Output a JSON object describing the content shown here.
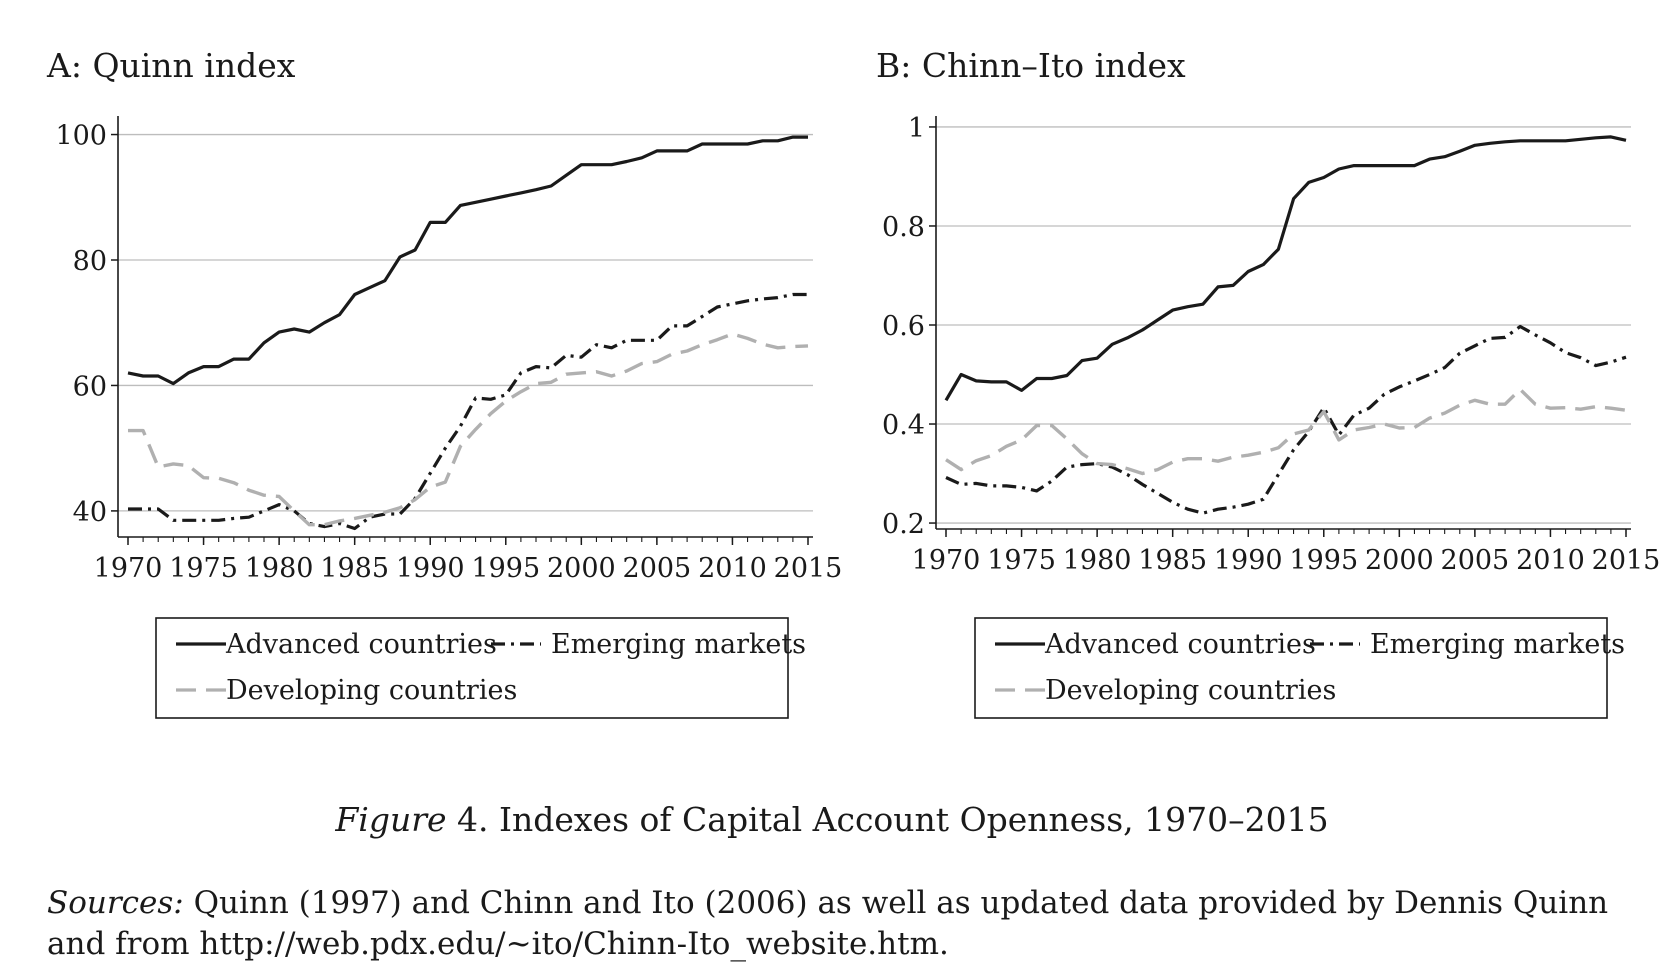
{
  "chart_data": [
    {
      "type": "line",
      "title": "A: Quinn index",
      "xlabel": "",
      "ylabel": "",
      "xlim": [
        1970,
        2015
      ],
      "ylim": [
        36,
        102
      ],
      "x_ticks": [
        1970,
        1975,
        1980,
        1985,
        1990,
        1995,
        2000,
        2005,
        2010,
        2015
      ],
      "y_ticks": [
        40,
        60,
        80,
        100
      ],
      "grid": "horizontal",
      "legend": "bottom",
      "x": [
        1970,
        1971,
        1972,
        1973,
        1974,
        1975,
        1976,
        1977,
        1978,
        1979,
        1980,
        1981,
        1982,
        1983,
        1984,
        1985,
        1986,
        1987,
        1988,
        1989,
        1990,
        1991,
        1992,
        1993,
        1994,
        1995,
        1996,
        1997,
        1998,
        1999,
        2000,
        2001,
        2002,
        2003,
        2004,
        2005,
        2006,
        2007,
        2008,
        2009,
        2010,
        2011,
        2012,
        2013,
        2014,
        2015
      ],
      "series": [
        {
          "name": "Advanced countries",
          "color": "#1a1a1a",
          "dash": "solid",
          "values": [
            62.0,
            61.5,
            61.5,
            60.3,
            62.0,
            63.0,
            63.0,
            64.2,
            64.2,
            66.8,
            68.5,
            69.0,
            68.5,
            70.0,
            71.3,
            74.5,
            75.6,
            76.7,
            80.5,
            81.6,
            86.0,
            86.0,
            88.7,
            89.2,
            89.7,
            90.2,
            90.7,
            91.2,
            91.8,
            93.5,
            95.2,
            95.2,
            95.2,
            95.7,
            96.3,
            97.4,
            97.4,
            97.4,
            98.5,
            98.5,
            98.5,
            98.5,
            99.0,
            99.0,
            99.6,
            99.6
          ]
        },
        {
          "name": "Emerging markets",
          "color": "#1a1a1a",
          "dash": "dashdot",
          "values": [
            40.3,
            40.3,
            40.3,
            38.5,
            38.5,
            38.5,
            38.5,
            38.8,
            39.0,
            40.0,
            41.0,
            40.0,
            38.0,
            37.5,
            38.0,
            37.2,
            39.0,
            39.5,
            39.5,
            42.0,
            46.0,
            50.0,
            53.5,
            58.0,
            57.8,
            58.5,
            62.0,
            63.0,
            62.8,
            64.8,
            64.5,
            66.5,
            66.0,
            67.2,
            67.2,
            67.2,
            69.5,
            69.5,
            71.0,
            72.5,
            73.0,
            73.5,
            73.8,
            74.0,
            74.5,
            74.5
          ]
        },
        {
          "name": "Developing countries",
          "color": "#b0b0b0",
          "dash": "dashed",
          "values": [
            52.8,
            52.8,
            47.0,
            47.5,
            47.2,
            45.3,
            45.2,
            44.5,
            43.3,
            42.5,
            42.3,
            40.0,
            37.8,
            37.8,
            38.4,
            38.8,
            39.3,
            39.8,
            40.5,
            41.8,
            43.8,
            44.6,
            50.3,
            53.0,
            55.5,
            57.5,
            59.0,
            60.3,
            60.5,
            61.8,
            62.0,
            62.2,
            61.5,
            62.3,
            63.5,
            63.8,
            65.0,
            65.5,
            66.5,
            67.3,
            68.2,
            67.5,
            66.6,
            66.0,
            66.2,
            66.3
          ]
        }
      ]
    },
    {
      "type": "line",
      "title": "B: Chinn–Ito index",
      "xlabel": "",
      "ylabel": "",
      "xlim": [
        1970,
        2015
      ],
      "ylim": [
        0.19,
        1.01
      ],
      "x_ticks": [
        1970,
        1975,
        1980,
        1985,
        1990,
        1995,
        2000,
        2005,
        2010,
        2015
      ],
      "y_ticks": [
        0.2,
        0.4,
        0.6,
        0.8,
        1
      ],
      "y_tick_labels": [
        "0.2",
        "0.4",
        "0.6",
        "0.8",
        "1"
      ],
      "grid": "horizontal",
      "legend": "bottom",
      "x": [
        1970,
        1971,
        1972,
        1973,
        1974,
        1975,
        1976,
        1977,
        1978,
        1979,
        1980,
        1981,
        1982,
        1983,
        1984,
        1985,
        1986,
        1987,
        1988,
        1989,
        1990,
        1991,
        1992,
        1993,
        1994,
        1995,
        1996,
        1997,
        1998,
        1999,
        2000,
        2001,
        2002,
        2003,
        2004,
        2005,
        2006,
        2007,
        2008,
        2009,
        2010,
        2011,
        2012,
        2013,
        2014,
        2015
      ],
      "series": [
        {
          "name": "Advanced countries",
          "color": "#1a1a1a",
          "dash": "solid",
          "values": [
            0.448,
            0.5,
            0.487,
            0.485,
            0.485,
            0.468,
            0.492,
            0.492,
            0.498,
            0.528,
            0.533,
            0.561,
            0.574,
            0.59,
            0.61,
            0.63,
            0.637,
            0.642,
            0.677,
            0.68,
            0.708,
            0.722,
            0.753,
            0.855,
            0.888,
            0.898,
            0.915,
            0.922,
            0.922,
            0.922,
            0.922,
            0.922,
            0.935,
            0.94,
            0.951,
            0.963,
            0.967,
            0.97,
            0.972,
            0.972,
            0.972,
            0.972,
            0.975,
            0.978,
            0.98,
            0.973
          ]
        },
        {
          "name": "Emerging markets",
          "color": "#1a1a1a",
          "dash": "dashdot",
          "values": [
            0.292,
            0.278,
            0.28,
            0.275,
            0.275,
            0.272,
            0.265,
            0.285,
            0.313,
            0.318,
            0.32,
            0.313,
            0.298,
            0.278,
            0.26,
            0.242,
            0.228,
            0.22,
            0.228,
            0.232,
            0.238,
            0.248,
            0.298,
            0.348,
            0.385,
            0.433,
            0.378,
            0.418,
            0.432,
            0.46,
            0.475,
            0.487,
            0.5,
            0.514,
            0.543,
            0.558,
            0.573,
            0.575,
            0.597,
            0.58,
            0.564,
            0.544,
            0.534,
            0.518,
            0.525,
            0.535
          ]
        },
        {
          "name": "Developing countries",
          "color": "#b0b0b0",
          "dash": "dashed",
          "values": [
            0.328,
            0.308,
            0.326,
            0.336,
            0.355,
            0.368,
            0.397,
            0.397,
            0.37,
            0.34,
            0.32,
            0.318,
            0.31,
            0.3,
            0.308,
            0.323,
            0.33,
            0.33,
            0.325,
            0.333,
            0.337,
            0.343,
            0.352,
            0.38,
            0.388,
            0.425,
            0.368,
            0.388,
            0.393,
            0.4,
            0.392,
            0.393,
            0.412,
            0.422,
            0.438,
            0.448,
            0.44,
            0.44,
            0.47,
            0.44,
            0.432,
            0.433,
            0.43,
            0.435,
            0.432,
            0.428
          ]
        }
      ]
    }
  ],
  "caption": {
    "label": "Figure",
    "text": " 4. Indexes of Capital Account Openness, 1970–2015"
  },
  "sources": {
    "label": "Sources:",
    "text": " Quinn (1997) and Chinn and Ito (2006) as well as updated data provided by Dennis Quinn and from http://web.pdx.edu/~ito/Chinn-Ito_website.htm."
  }
}
